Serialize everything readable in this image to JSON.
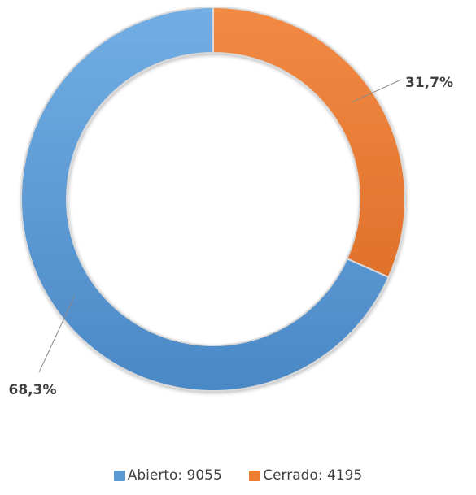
{
  "chart_data": {
    "type": "donut",
    "series": [
      {
        "name": "Abierto",
        "value": 9055,
        "percent_label": "68,3%",
        "color": "#5b9bd5"
      },
      {
        "name": "Cerrado",
        "value": 4195,
        "percent_label": "31,7%",
        "color": "#ed7d31"
      }
    ],
    "legend": {
      "placement": "bottom",
      "items": [
        "Abierto: 9055",
        "Cerrado: 4195"
      ]
    }
  }
}
